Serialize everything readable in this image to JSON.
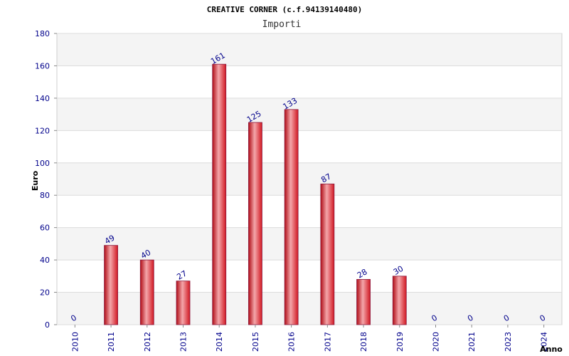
{
  "chart_data": {
    "type": "bar",
    "title": "CREATIVE CORNER (c.f.94139140480)",
    "subtitle": "Importi",
    "xlabel": "Anno",
    "ylabel": "Euro",
    "ylim": [
      0,
      180
    ],
    "yticks": [
      0,
      20,
      40,
      60,
      80,
      100,
      120,
      140,
      160,
      180
    ],
    "grid": true,
    "categories": [
      "2010",
      "2011",
      "2012",
      "2013",
      "2014",
      "2015",
      "2016",
      "2017",
      "2018",
      "2019",
      "2020",
      "2021",
      "2023",
      "2024"
    ],
    "values": [
      0,
      49,
      40,
      27,
      161,
      125,
      133,
      87,
      28,
      30,
      0,
      0,
      0,
      0
    ],
    "bar_color": "#e8202a",
    "label_color": "#00008b"
  }
}
